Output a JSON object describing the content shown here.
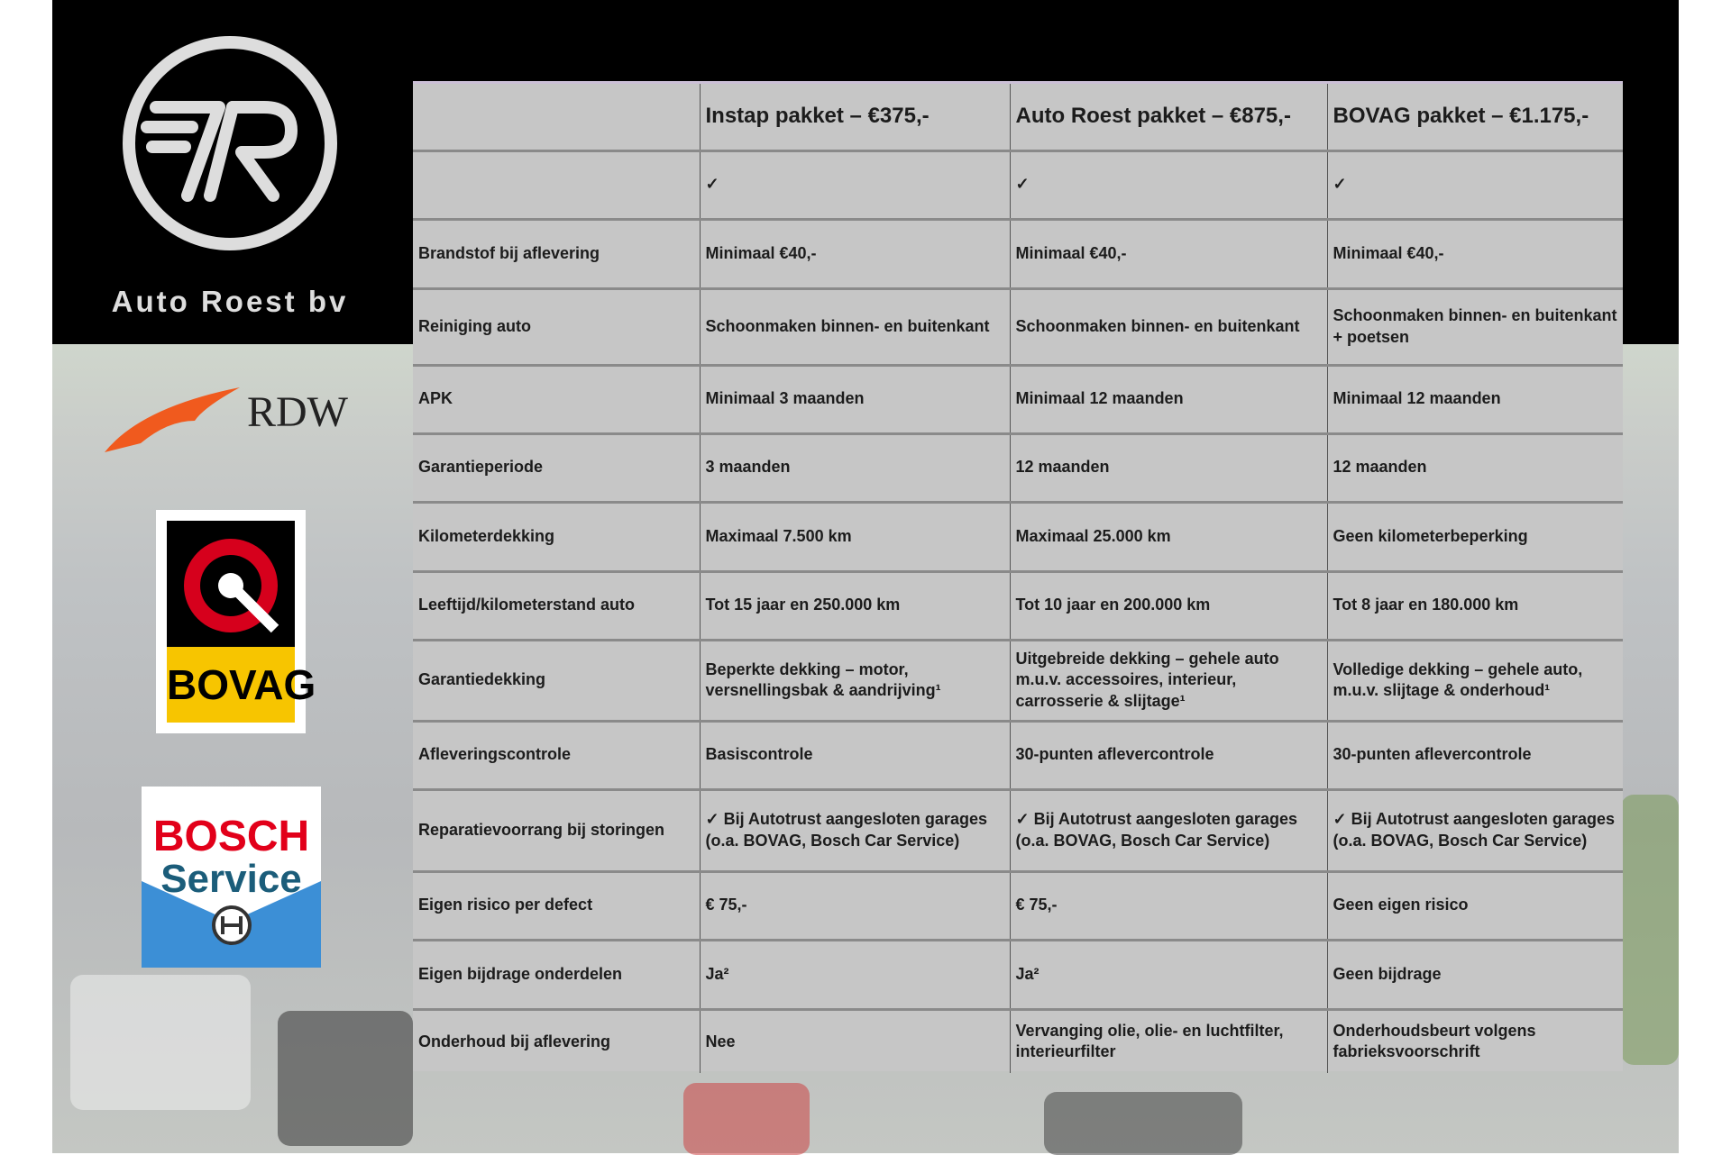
{
  "brand": {
    "name": "Auto Roest bv",
    "logo_letters": "7R"
  },
  "badges": {
    "rdw": "RDW",
    "bovag": "BOVAG",
    "bosch_line1": "BOSCH",
    "bosch_line2": "Service"
  },
  "table": {
    "headers": [
      "",
      "Instap pakket – €375,-",
      "Auto Roest pakket – €875,-",
      "BOVAG pakket – €1.175,-"
    ],
    "rows": [
      [
        "",
        "✓",
        "✓",
        "✓"
      ],
      [
        "Brandstof bij aflevering",
        "Minimaal €40,-",
        "Minimaal €40,-",
        "Minimaal €40,-"
      ],
      [
        "Reiniging auto",
        "Schoonmaken binnen- en buitenkant",
        "Schoonmaken binnen- en buitenkant",
        "Schoonmaken binnen- en buitenkant + poetsen"
      ],
      [
        "APK",
        "Minimaal 3 maanden",
        "Minimaal 12 maanden",
        "Minimaal 12 maanden"
      ],
      [
        "Garantieperiode",
        "3 maanden",
        "12 maanden",
        "12 maanden"
      ],
      [
        "Kilometerdekking",
        "Maximaal 7.500 km",
        "Maximaal 25.000 km",
        "Geen kilometerbeperking"
      ],
      [
        "Leeftijd/kilometerstand auto",
        "Tot 15 jaar en 250.000 km",
        "Tot 10 jaar en 200.000 km",
        "Tot 8 jaar en 180.000 km"
      ],
      [
        "Garantiedekking",
        "Beperkte dekking – motor, versnellingsbak & aandrijving¹",
        "Uitgebreide dekking – gehele auto m.u.v. accessoires, interieur, carrosserie & slijtage¹",
        "Volledige dekking – gehele auto, m.u.v. slijtage & onderhoud¹"
      ],
      [
        "Afleveringscontrole",
        "Basiscontrole",
        "30-punten aflevercontrole",
        "30-punten aflevercontrole"
      ],
      [
        "Reparatievoorrang bij storingen",
        "✓ Bij Autotrust aangesloten garages (o.a. BOVAG, Bosch Car Service)",
        "✓ Bij Autotrust aangesloten garages (o.a. BOVAG, Bosch Car Service)",
        "✓ Bij Autotrust aangesloten garages (o.a. BOVAG, Bosch Car Service)"
      ],
      [
        "Eigen risico per defect",
        "€ 75,-",
        "€ 75,-",
        "Geen eigen risico"
      ],
      [
        "Eigen bijdrage onderdelen",
        "Ja²",
        "Ja²",
        "Geen bijdrage"
      ],
      [
        "Onderhoud bij aflevering",
        "Nee",
        "Vervanging olie, olie- en luchtfilter, interieurfilter",
        "Onderhoudsbeurt volgens fabrieksvoorschrift"
      ]
    ]
  },
  "colors": {
    "band": "#000000",
    "table_bg": "#c6c6c6",
    "rdw_orange": "#f05a1e",
    "bovag_yellow": "#f7c500",
    "bovag_red": "#d6001c",
    "bosch_red": "#e2001a",
    "bosch_blue": "#3c8fd6"
  }
}
